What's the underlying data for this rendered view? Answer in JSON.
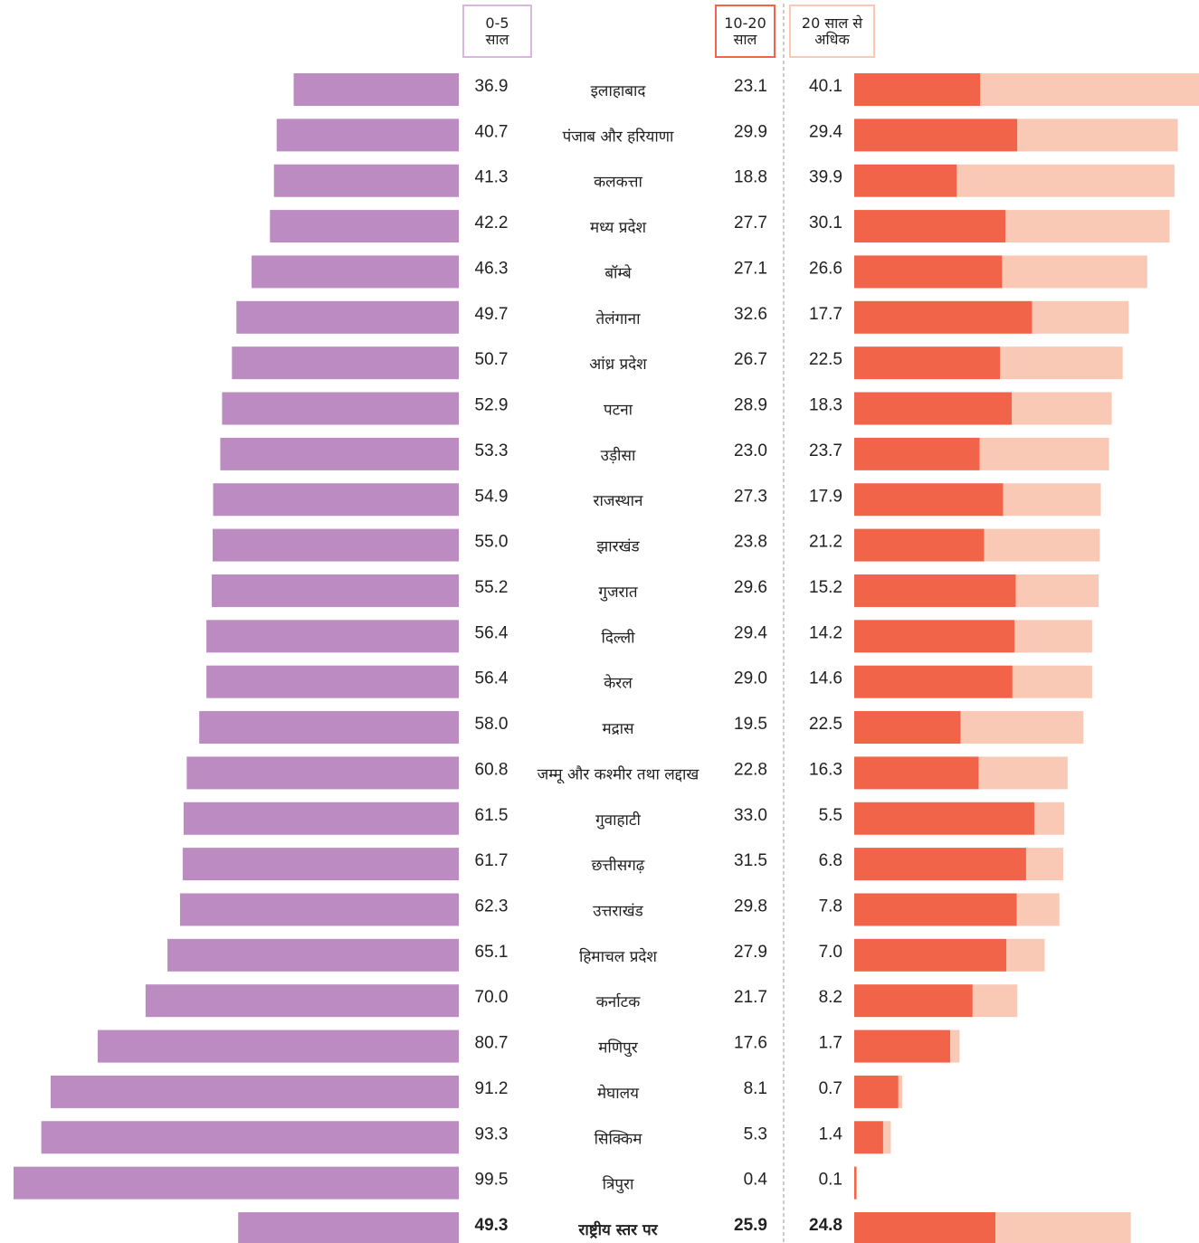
{
  "chart_data": {
    "type": "bar",
    "categories": [
      "इलाहाबाद",
      "पंजाब और हरियाणा",
      "कलकत्ता",
      "मध्य प्रदेश",
      "बॉम्बे",
      "तेलंगाना",
      "आंध्र प्रदेश",
      "पटना",
      "उड़ीसा",
      "राजस्थान",
      "झारखंड",
      "गुजरात",
      "दिल्ली",
      "केरल",
      "मद्रास",
      "जम्मू और कश्मीर तथा लद्दाख",
      "गुवाहाटी",
      "छत्तीसगढ़",
      "उत्तराखंड",
      "हिमाचल प्रदेश",
      "कर्नाटक",
      "मणिपुर",
      "मेघालय",
      "सिक्किम",
      "त्रिपुरा",
      "राष्ट्रीय स्तर पर"
    ],
    "series": [
      {
        "name": "0-5 साल",
        "color": "#bb8bc1",
        "border": "#d9b6de",
        "values": [
          36.9,
          40.7,
          41.3,
          42.2,
          46.3,
          49.7,
          50.7,
          52.9,
          53.3,
          54.9,
          55.0,
          55.2,
          56.4,
          56.4,
          58.0,
          60.8,
          61.5,
          61.7,
          62.3,
          65.1,
          70.0,
          80.7,
          91.2,
          93.3,
          99.5,
          49.3
        ],
        "value_labels": [
          "36.9",
          "40.7",
          "41.3",
          "42.2",
          "46.3",
          "49.7",
          "50.7",
          "52.9",
          "53.3",
          "54.9",
          "55.0",
          "55.2",
          "56.4",
          "56.4",
          "58.0",
          "60.8",
          "61.5",
          "61.7",
          "62.3",
          "65.1",
          "70.0",
          "80.7",
          "91.2",
          "93.3",
          "99.5",
          "49.3"
        ]
      },
      {
        "name": "10-20 साल",
        "color": "#f26449",
        "border": "#f26449",
        "values": [
          23.1,
          29.9,
          18.8,
          27.7,
          27.1,
          32.6,
          26.7,
          28.9,
          23.0,
          27.3,
          23.8,
          29.6,
          29.4,
          29.0,
          19.5,
          22.8,
          33.0,
          31.5,
          29.8,
          27.9,
          21.7,
          17.6,
          8.1,
          5.3,
          0.4,
          25.9
        ],
        "value_labels": [
          "23.1",
          "29.9",
          "18.8",
          "27.7",
          "27.1",
          "32.6",
          "26.7",
          "28.9",
          "23.0",
          "27.3",
          "23.8",
          "29.6",
          "29.4",
          "29.0",
          "19.5",
          "22.8",
          "33.0",
          "31.5",
          "29.8",
          "27.9",
          "21.7",
          "17.6",
          "8.1",
          "5.3",
          "0.4",
          "25.9"
        ]
      },
      {
        "name": "20 साल से अधिक",
        "color": "#f9c9b5",
        "border": "#f9c9b5",
        "values": [
          40.1,
          29.4,
          39.9,
          30.1,
          26.6,
          17.7,
          22.5,
          18.3,
          23.7,
          17.9,
          21.2,
          15.2,
          14.2,
          14.6,
          22.5,
          16.3,
          5.5,
          6.8,
          7.8,
          7.0,
          8.2,
          1.7,
          0.7,
          1.4,
          0.1,
          24.8
        ],
        "value_labels": [
          "40.1",
          "29.4",
          "39.9",
          "30.1",
          "26.6",
          "17.7",
          "22.5",
          "18.3",
          "23.7",
          "17.9",
          "21.2",
          "15.2",
          "14.2",
          "14.6",
          "22.5",
          "16.3",
          "5.5",
          "6.8",
          "7.8",
          "7.0",
          "8.2",
          "1.7",
          "0.7",
          "1.4",
          "0.1",
          "24.8"
        ]
      }
    ]
  }
}
